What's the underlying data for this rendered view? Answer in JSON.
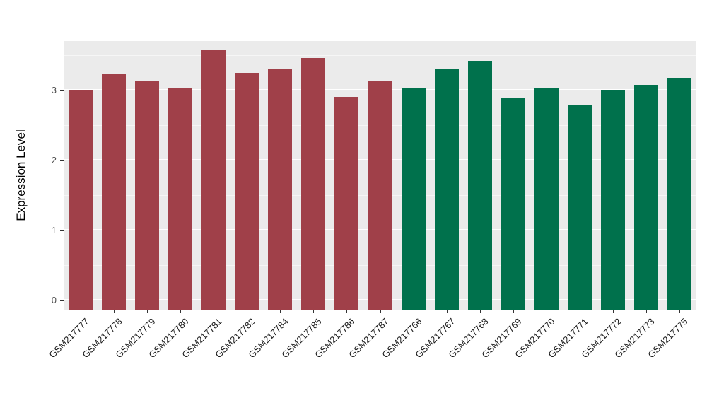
{
  "chart_data": {
    "type": "bar",
    "title": "",
    "xlabel": "",
    "ylabel": "Expression Level",
    "ylim": [
      0,
      3.7
    ],
    "yticks": [
      0,
      1,
      2,
      3
    ],
    "minor_ticks": [
      0.5,
      1.5,
      2.5,
      3.5
    ],
    "grid": true,
    "legend": "none",
    "panel_bg": "#EBEBEB",
    "categories": [
      "GSM217777",
      "GSM217778",
      "GSM217779",
      "GSM217780",
      "GSM217781",
      "GSM217782",
      "GSM217784",
      "GSM217785",
      "GSM217786",
      "GSM217787",
      "GSM217766",
      "GSM217767",
      "GSM217768",
      "GSM217769",
      "GSM217770",
      "GSM217771",
      "GSM217772",
      "GSM217773",
      "GSM217775"
    ],
    "values": [
      3.0,
      3.25,
      3.14,
      3.03,
      3.58,
      3.26,
      3.31,
      3.47,
      2.91,
      3.13,
      3.04,
      3.31,
      3.43,
      2.9,
      3.04,
      2.79,
      3.0,
      3.08,
      3.19
    ],
    "groups": [
      "red",
      "red",
      "red",
      "red",
      "red",
      "red",
      "red",
      "red",
      "red",
      "red",
      "green",
      "green",
      "green",
      "green",
      "green",
      "green",
      "green",
      "green",
      "green"
    ],
    "group_colors": {
      "red": "#A04049",
      "green": "#00714C"
    }
  }
}
